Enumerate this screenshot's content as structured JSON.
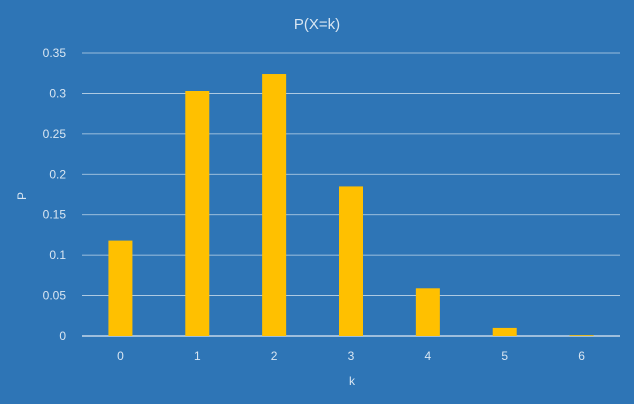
{
  "colors": {
    "background": "#2E75B6",
    "bar": "#FFC000",
    "grid": "#FFFFFF",
    "text": "#D9E6F2"
  },
  "chart_data": {
    "type": "bar",
    "title": "P(X=k)",
    "xlabel": "k",
    "ylabel": "P",
    "categories": [
      "0",
      "1",
      "2",
      "3",
      "4",
      "5",
      "6"
    ],
    "values": [
      0.118,
      0.303,
      0.324,
      0.185,
      0.059,
      0.01,
      0.001
    ],
    "ylim": [
      0,
      0.35
    ],
    "yticks": [
      "0",
      "0.05",
      "0.1",
      "0.15",
      "0.2",
      "0.25",
      "0.3",
      "0.35"
    ],
    "grid": true,
    "legend": "none"
  }
}
